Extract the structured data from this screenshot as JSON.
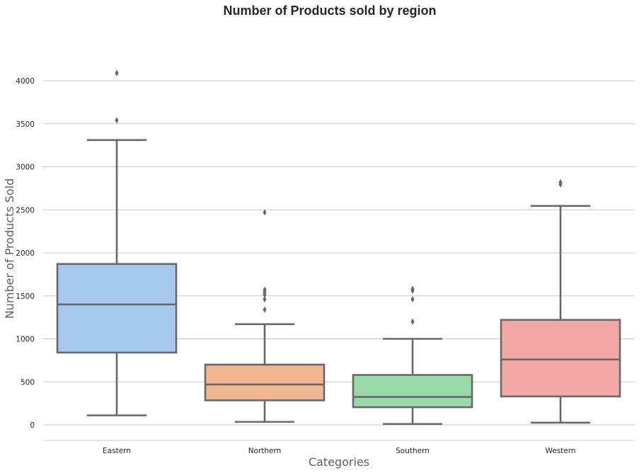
{
  "chart_data": {
    "type": "box",
    "title": "Number of Products sold by region",
    "xlabel": "Categories",
    "ylabel": "Number of Products Sold",
    "ylim": [
      -180,
      4300
    ],
    "yticks": [
      0,
      500,
      1000,
      1500,
      2000,
      2500,
      3000,
      3500,
      4000
    ],
    "grid": "horizontal",
    "categories": [
      "Eastern",
      "Northern",
      "Southern",
      "Western"
    ],
    "boxes": [
      {
        "category": "Eastern",
        "color": "#a7c8ed",
        "whisker_low": 110,
        "q1": 840,
        "median": 1400,
        "q3": 1870,
        "whisker_high": 3310,
        "outliers": [
          3540,
          4090
        ]
      },
      {
        "category": "Northern",
        "color": "#f0b68f",
        "whisker_low": 35,
        "q1": 285,
        "median": 470,
        "q3": 700,
        "whisker_high": 1170,
        "outliers": [
          1340,
          1460,
          1510,
          1540,
          1570,
          2470
        ]
      },
      {
        "category": "Southern",
        "color": "#98dba8",
        "whisker_low": 10,
        "q1": 205,
        "median": 325,
        "q3": 580,
        "whisker_high": 1000,
        "outliers": [
          1200,
          1460,
          1560,
          1580
        ]
      },
      {
        "category": "Western",
        "color": "#f2a9a6",
        "whisker_low": 25,
        "q1": 330,
        "median": 760,
        "q3": 1220,
        "whisker_high": 2545,
        "outliers": [
          2795,
          2820
        ]
      }
    ],
    "line_color": "#686868",
    "grid_color": "#c8c8c8"
  }
}
